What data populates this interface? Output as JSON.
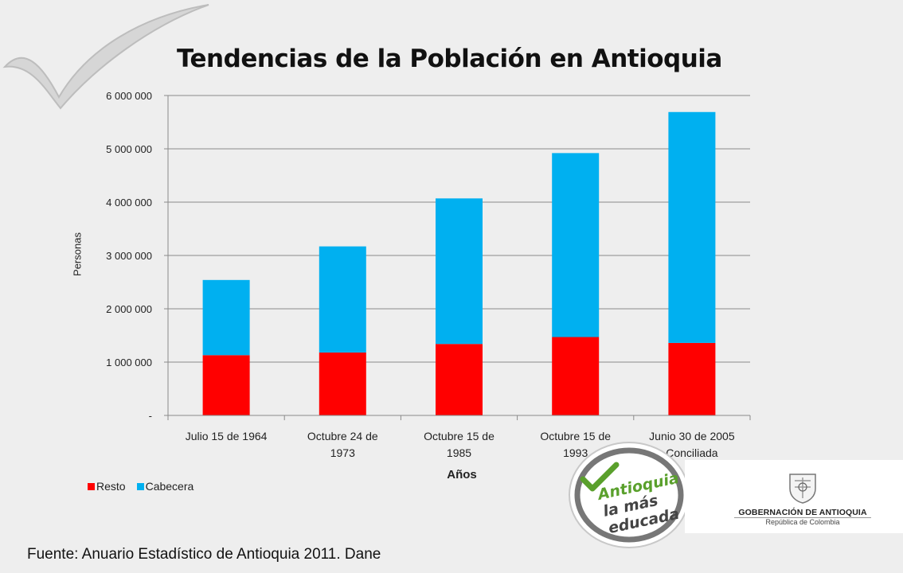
{
  "title": "Tendencias de la Población en Antioquia",
  "source": "Fuente: Anuario Estadístico de Antioquia 2011. Dane",
  "logos": {
    "seal_lines": [
      "Antioquia",
      "la más",
      "educada"
    ],
    "government_name": "GOBERNACIÓN DE ANTIOQUIA",
    "government_sub": "República de Colombia"
  },
  "chart_data": {
    "type": "bar",
    "stacked": true,
    "title": "Tendencias de la Población en Antioquia",
    "xlabel": "Años",
    "ylabel": "Personas",
    "categories": [
      [
        "Julio 15 de 1964"
      ],
      [
        "Octubre 24 de",
        "1973"
      ],
      [
        "Octubre 15 de",
        "1985"
      ],
      [
        "Octubre 15 de",
        "1993"
      ],
      [
        "Junio 30 de 2005",
        "Conciliada"
      ]
    ],
    "series": [
      {
        "name": "Resto",
        "color": "#ff0000",
        "values": [
          1130000,
          1180000,
          1340000,
          1470000,
          1360000
        ]
      },
      {
        "name": "Cabecera",
        "color": "#00b0f0",
        "values": [
          1410000,
          1990000,
          2730000,
          3450000,
          4330000
        ]
      }
    ],
    "ylim": [
      0,
      6000000
    ],
    "yticks": [
      0,
      1000000,
      2000000,
      3000000,
      4000000,
      5000000,
      6000000
    ],
    "ytick_labels": [
      "-",
      "1 000 000",
      "2 000 000",
      "3 000 000",
      "4 000 000",
      "5 000 000",
      "6 000 000"
    ],
    "grid": true,
    "legend_position": "bottom-left"
  }
}
